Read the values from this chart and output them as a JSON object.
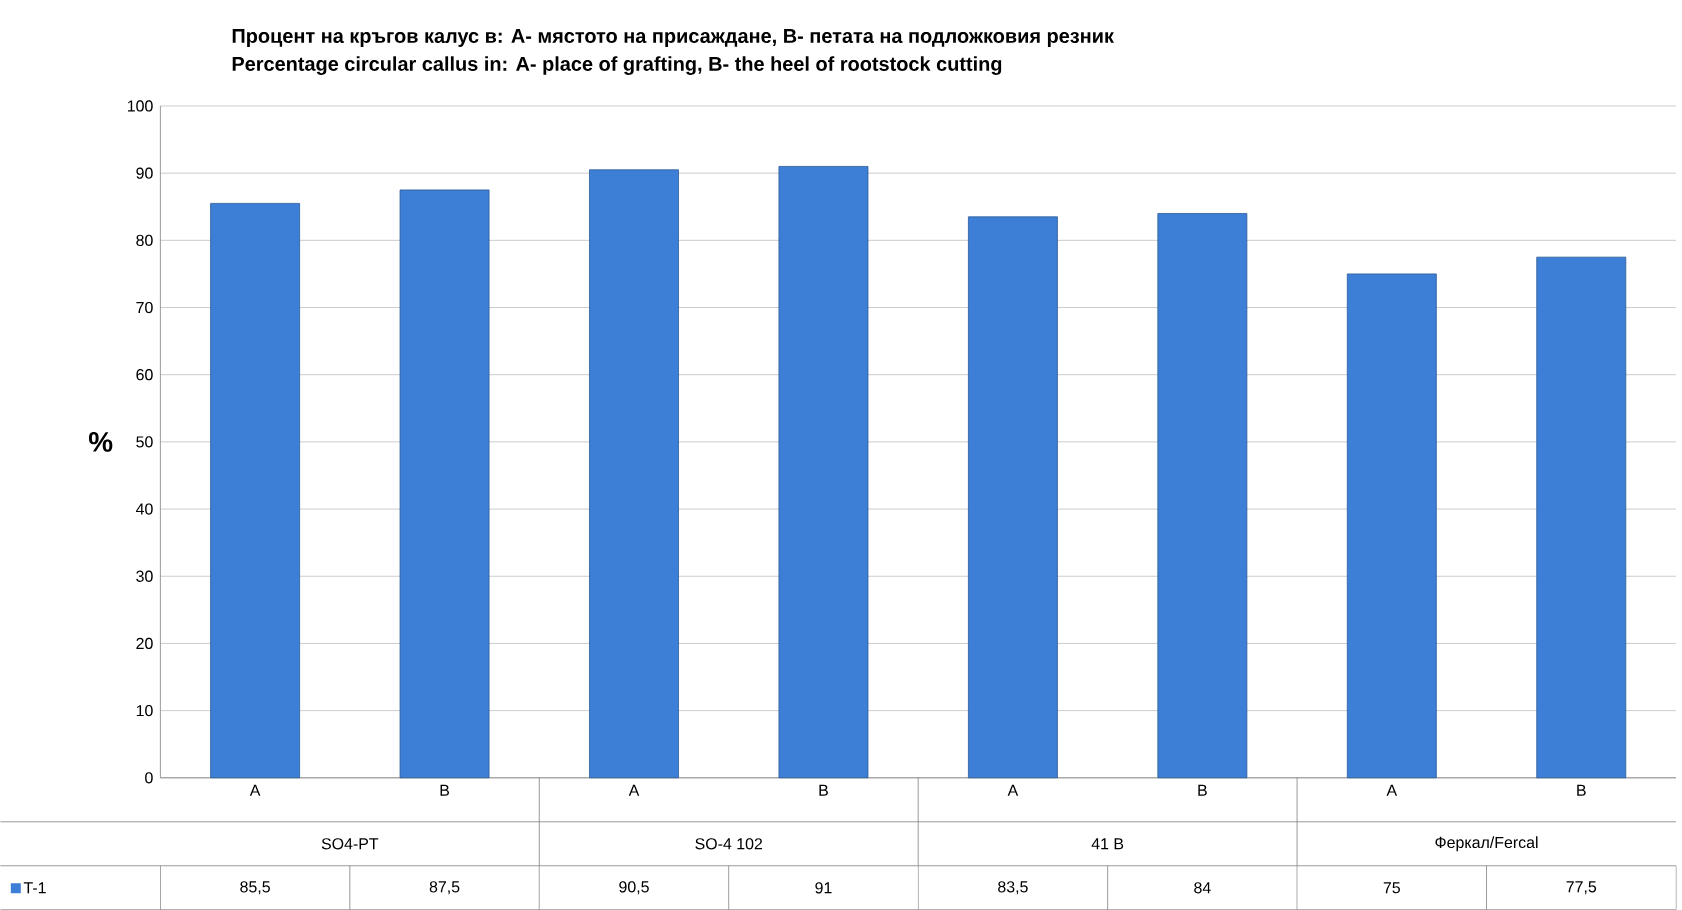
{
  "chart_data": {
    "type": "bar",
    "title": "Процент на кръгов калус в: А- мястото на присаждане, В- петата на подложковия резник",
    "subtitle": "Percentage circular callus in: A- place of grafting, B- the heel of rootstock cutting",
    "ylabel": "%",
    "categories": [
      "A",
      "B",
      "A",
      "B",
      "A",
      "B",
      "A",
      "B"
    ],
    "annotations": [
      "SO4-PT",
      "SO-4 102",
      "41 B",
      "Фeркал/Fercal"
    ],
    "series": [
      {
        "name": "T-1",
        "color": "#3d7fd6",
        "values": [
          85.5,
          87.5,
          90.5,
          91,
          83.5,
          84,
          75,
          77.5
        ],
        "value_labels": [
          "85,5",
          "87,5",
          "90,5",
          "91",
          "83,5",
          "84",
          "75",
          "77,5"
        ]
      }
    ],
    "ylim": [
      0,
      100
    ],
    "yticks": [
      0,
      10,
      20,
      30,
      40,
      50,
      60,
      70,
      80,
      90,
      100
    ],
    "grid": "y",
    "legend": "bottom"
  }
}
